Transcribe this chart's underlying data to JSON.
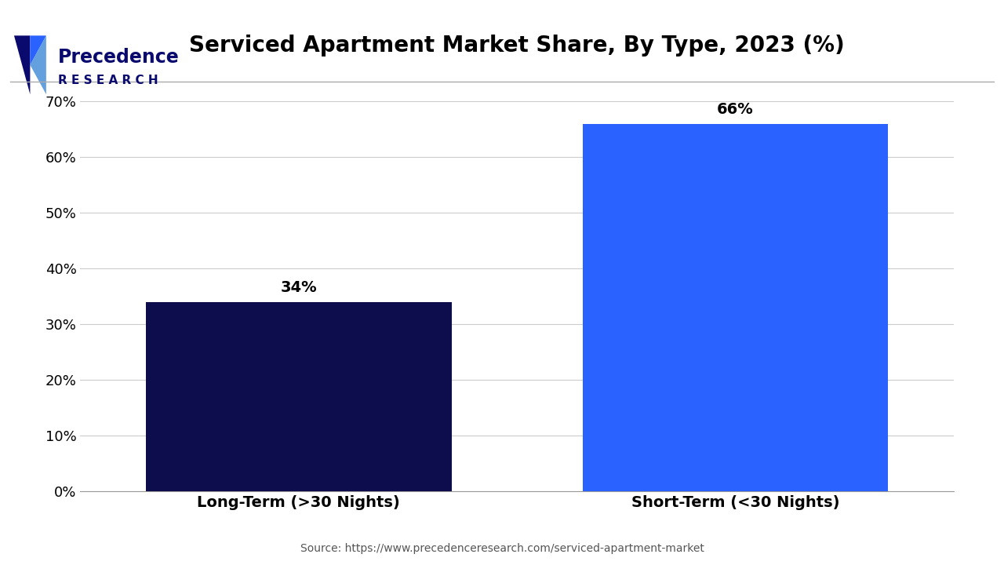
{
  "title": "Serviced Apartment Market Share, By Type, 2023 (%)",
  "categories": [
    "Long-Term (>30 Nights)",
    "Short-Term (<30 Nights)"
  ],
  "values": [
    34,
    66
  ],
  "bar_colors": [
    "#0d0d4d",
    "#2962ff"
  ],
  "ylabel_ticks": [
    "0%",
    "10%",
    "20%",
    "30%",
    "40%",
    "50%",
    "60%",
    "70%"
  ],
  "ytick_values": [
    0,
    10,
    20,
    30,
    40,
    50,
    60,
    70
  ],
  "ylim": [
    0,
    75
  ],
  "source_text": "Source: https://www.precedenceresearch.com/serviced-apartment-market",
  "title_fontsize": 20,
  "tick_fontsize": 13,
  "label_fontsize": 14,
  "value_fontsize": 14,
  "bar_width": 0.35,
  "background_color": "#ffffff",
  "grid_color": "#cccccc",
  "logo_color": "#0a0a6e",
  "logo_accent": "#2962ff"
}
